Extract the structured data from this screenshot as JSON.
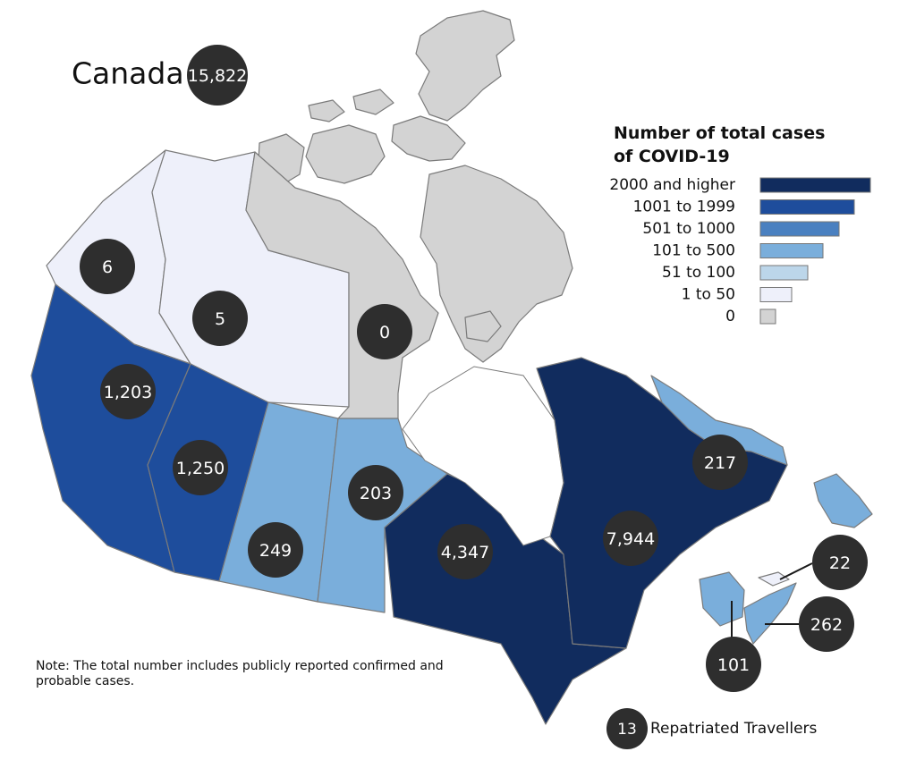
{
  "legend": {
    "title_line1": "Number of total cases",
    "title_line2": "of COVID-19",
    "items": [
      {
        "label": "2000 and higher",
        "color": "#112c5e"
      },
      {
        "label": "1001 to 1999",
        "color": "#1e4d9c"
      },
      {
        "label": "501 to 1000",
        "color": "#4a80c0"
      },
      {
        "label": "101 to 500",
        "color": "#7aaedb"
      },
      {
        "label": "51 to 100",
        "color": "#bcd6ea"
      },
      {
        "label": "1 to 50",
        "color": "#eef0fa"
      },
      {
        "label": "0",
        "color": "#d3d3d3"
      }
    ]
  },
  "country": {
    "name": "Canada",
    "total": "15,822"
  },
  "regions": {
    "yukon": {
      "cases": "6",
      "color": "#eef0fa"
    },
    "northwest_territories": {
      "cases": "5",
      "color": "#eef0fa"
    },
    "nunavut": {
      "cases": "0",
      "color": "#d3d3d3"
    },
    "british_columbia": {
      "cases": "1,203",
      "color": "#1e4d9c"
    },
    "alberta": {
      "cases": "1,250",
      "color": "#1e4d9c"
    },
    "saskatchewan": {
      "cases": "249",
      "color": "#7aaedb"
    },
    "manitoba": {
      "cases": "203",
      "color": "#7aaedb"
    },
    "ontario": {
      "cases": "4,347",
      "color": "#112c5e"
    },
    "quebec": {
      "cases": "7,944",
      "color": "#112c5e"
    },
    "newfoundland_labrador": {
      "cases": "217",
      "color": "#7aaedb"
    },
    "prince_edward_island": {
      "cases": "22",
      "color": "#eef0fa"
    },
    "nova_scotia": {
      "cases": "262",
      "color": "#7aaedb"
    },
    "new_brunswick": {
      "cases": "101",
      "color": "#7aaedb"
    }
  },
  "travellers": {
    "count": "13",
    "label": "Repatriated Travellers"
  },
  "note": {
    "line1": "Note: The total number includes publicly reported confirmed and",
    "line2": "probable cases."
  }
}
